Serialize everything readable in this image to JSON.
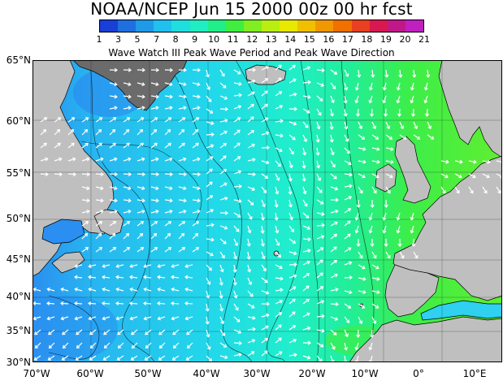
{
  "header": {
    "title": "NOAA/NCEP Jun 15 2000 00z 00 hr fcst",
    "subtitle": "Wave Watch III Peak Wave Period and Peak Wave Direction"
  },
  "colorbar": {
    "ticks": [
      "1",
      "3",
      "5",
      "7",
      "8",
      "9",
      "10",
      "11",
      "12",
      "13",
      "14",
      "15",
      "16",
      "17",
      "18",
      "19",
      "20",
      "21"
    ],
    "colors": [
      "#1a3fd6",
      "#1f6fe0",
      "#1f9ae8",
      "#20c0ef",
      "#20dede",
      "#20eec0",
      "#20ee88",
      "#40ee40",
      "#80ee20",
      "#b8ee10",
      "#e8e800",
      "#f0c000",
      "#f09800",
      "#f07000",
      "#e84020",
      "#d81850",
      "#c01888",
      "#c020c0"
    ]
  },
  "map": {
    "lat_labels": [
      "65°N",
      "60°N",
      "55°N",
      "50°N",
      "45°N",
      "40°N",
      "35°N",
      "30°N"
    ],
    "lon_labels": [
      "70°W",
      "60°W",
      "50°W",
      "40°W",
      "30°W",
      "20°W",
      "10°W",
      "0°",
      "10°E"
    ],
    "colors": {
      "land": "#bfbfbf",
      "ice": "#6b6b6b",
      "arrow": "#ffffff",
      "contour": "#000000",
      "grid": "#000000"
    }
  }
}
